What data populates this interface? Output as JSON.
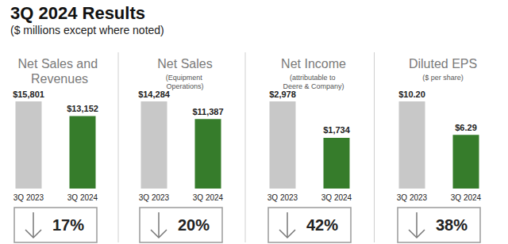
{
  "title": "3Q 2024 Results",
  "subtitle": "($ millions except where noted)",
  "chart_data": [
    {
      "type": "bar",
      "title": "Net Sales and Revenues",
      "categories": [
        "3Q 2023",
        "3Q 2024"
      ],
      "values": [
        15801,
        13152
      ],
      "value_labels": [
        "$15,801",
        "$13,152"
      ],
      "colors": [
        "#c8c8c8",
        "#367c2b"
      ],
      "ylim": [
        0,
        15801
      ],
      "data_labels": true,
      "tick_labels": "x",
      "annotation": "17%"
    },
    {
      "type": "bar",
      "title": "Net Sales",
      "subtitle": "(Equipment Operations)",
      "categories": [
        "3Q 2023",
        "3Q 2024"
      ],
      "values": [
        14284,
        11387
      ],
      "value_labels": [
        "$14,284",
        "$11,387"
      ],
      "colors": [
        "#c8c8c8",
        "#367c2b"
      ],
      "ylim": [
        0,
        14284
      ],
      "data_labels": true,
      "tick_labels": "x",
      "annotation": "20%"
    },
    {
      "type": "bar",
      "title": "Net Income",
      "subtitle": "(attributable to Deere & Company)",
      "categories": [
        "3Q 2023",
        "3Q 2024"
      ],
      "values": [
        2978,
        1734
      ],
      "value_labels": [
        "$2,978",
        "$1,734"
      ],
      "colors": [
        "#c8c8c8",
        "#367c2b"
      ],
      "ylim": [
        0,
        2978
      ],
      "data_labels": true,
      "tick_labels": "x",
      "annotation": "42%"
    },
    {
      "type": "bar",
      "title": "Diluted EPS",
      "subtitle": "($ per share)",
      "categories": [
        "3Q 2023",
        "3Q 2024"
      ],
      "values": [
        10.2,
        6.29
      ],
      "value_labels": [
        "$10.20",
        "$6.29"
      ],
      "colors": [
        "#c8c8c8",
        "#367c2b"
      ],
      "ylim": [
        0,
        10.2
      ],
      "data_labels": true,
      "tick_labels": "x",
      "annotation": "38%"
    }
  ]
}
